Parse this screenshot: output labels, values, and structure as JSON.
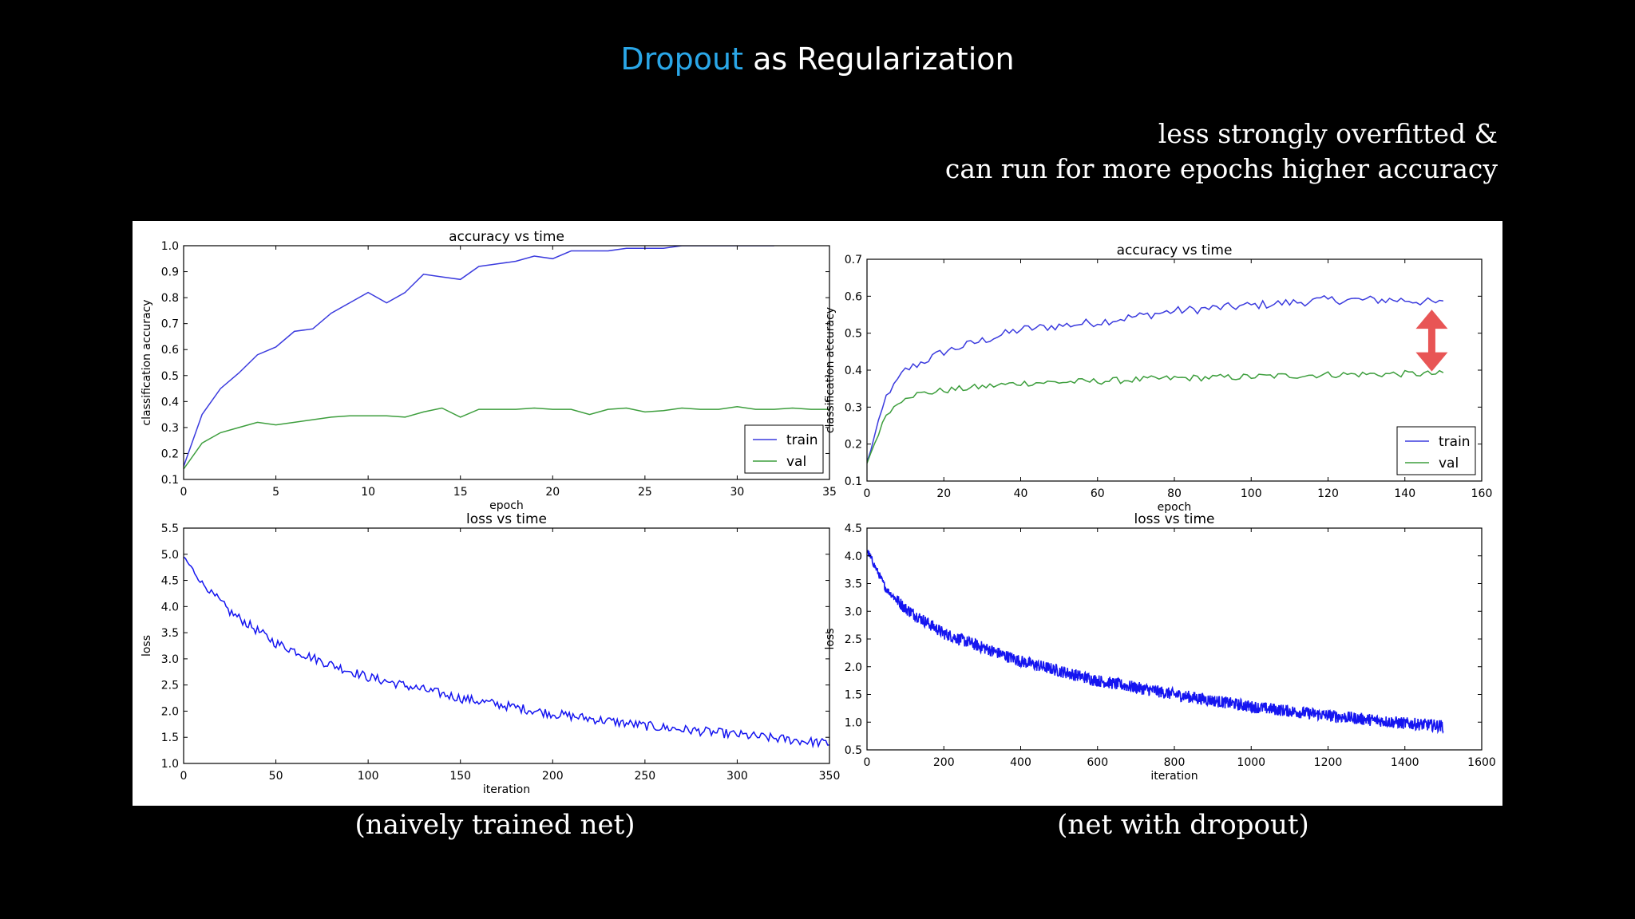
{
  "slide": {
    "title_highlight": "Dropout",
    "title_rest": " as Regularization",
    "note_line1": "less strongly overfitted &",
    "note_line2": "can run for more epochs higher accuracy",
    "caption_left": "(naively trained net)",
    "caption_right": "(net with dropout)"
  },
  "colors": {
    "title_highlight": "#2aa7e8",
    "train": "#3b3bde",
    "val": "#3d9e3d",
    "loss": "#1515f0",
    "arrow": "#e85555"
  },
  "chart_data": [
    {
      "id": "acc-left",
      "type": "line",
      "title": "accuracy vs time",
      "xlabel": "epoch",
      "ylabel": "classification accuracy",
      "xlim": [
        0,
        35
      ],
      "ylim": [
        0.1,
        1.0
      ],
      "xticks": [
        0,
        5,
        10,
        15,
        20,
        25,
        30,
        35
      ],
      "yticks": [
        0.1,
        0.2,
        0.3,
        0.4,
        0.5,
        0.6,
        0.7,
        0.8,
        0.9,
        1.0
      ],
      "legend": {
        "position": "lower-right",
        "entries": [
          "train",
          "val"
        ]
      },
      "series": [
        {
          "name": "train",
          "x": [
            0,
            1,
            2,
            3,
            4,
            5,
            6,
            7,
            8,
            9,
            10,
            11,
            12,
            13,
            14,
            15,
            16,
            17,
            18,
            19,
            20,
            21,
            22,
            23,
            24,
            25,
            26,
            27,
            28,
            29,
            30,
            31,
            32
          ],
          "y": [
            0.15,
            0.35,
            0.45,
            0.51,
            0.58,
            0.61,
            0.67,
            0.68,
            0.74,
            0.78,
            0.82,
            0.78,
            0.82,
            0.89,
            0.88,
            0.87,
            0.92,
            0.93,
            0.94,
            0.96,
            0.95,
            0.98,
            0.98,
            0.98,
            0.99,
            0.99,
            0.99,
            1.0,
            1.0,
            1.0,
            1.0,
            1.0,
            1.0
          ]
        },
        {
          "name": "val",
          "x": [
            0,
            1,
            2,
            3,
            4,
            5,
            6,
            7,
            8,
            9,
            10,
            11,
            12,
            13,
            14,
            15,
            16,
            17,
            18,
            19,
            20,
            21,
            22,
            23,
            24,
            25,
            26,
            27,
            28,
            29,
            30,
            31,
            32,
            33,
            34,
            35
          ],
          "y": [
            0.14,
            0.24,
            0.28,
            0.3,
            0.32,
            0.31,
            0.32,
            0.33,
            0.34,
            0.345,
            0.345,
            0.345,
            0.34,
            0.36,
            0.375,
            0.34,
            0.37,
            0.37,
            0.37,
            0.375,
            0.37,
            0.37,
            0.35,
            0.37,
            0.375,
            0.36,
            0.365,
            0.375,
            0.37,
            0.37,
            0.38,
            0.37,
            0.37,
            0.375,
            0.37,
            0.37
          ]
        }
      ]
    },
    {
      "id": "acc-right",
      "type": "line",
      "title": "accuracy vs time",
      "xlabel": "epoch",
      "ylabel": "classification accuracy",
      "xlim": [
        0,
        160
      ],
      "ylim": [
        0.1,
        0.7
      ],
      "xticks": [
        0,
        20,
        40,
        60,
        80,
        100,
        120,
        140,
        160
      ],
      "yticks": [
        0.1,
        0.2,
        0.3,
        0.4,
        0.5,
        0.6,
        0.7
      ],
      "legend": {
        "position": "lower-right",
        "entries": [
          "train",
          "val"
        ]
      },
      "annotation": "double-headed red arrow between train and val at epoch ~147",
      "series": [
        {
          "name": "train",
          "trend": [
            [
              0,
              0.15
            ],
            [
              5,
              0.33
            ],
            [
              10,
              0.4
            ],
            [
              20,
              0.45
            ],
            [
              40,
              0.51
            ],
            [
              60,
              0.53
            ],
            [
              80,
              0.56
            ],
            [
              100,
              0.575
            ],
            [
              120,
              0.59
            ],
            [
              140,
              0.59
            ],
            [
              150,
              0.58
            ]
          ],
          "noise": 0.012
        },
        {
          "name": "val",
          "trend": [
            [
              0,
              0.15
            ],
            [
              5,
              0.28
            ],
            [
              10,
              0.33
            ],
            [
              20,
              0.345
            ],
            [
              40,
              0.365
            ],
            [
              60,
              0.37
            ],
            [
              80,
              0.378
            ],
            [
              100,
              0.382
            ],
            [
              120,
              0.388
            ],
            [
              140,
              0.39
            ],
            [
              150,
              0.39
            ]
          ],
          "noise": 0.009
        }
      ]
    },
    {
      "id": "loss-left",
      "type": "line",
      "title": "loss vs time",
      "xlabel": "iteration",
      "ylabel": "loss",
      "xlim": [
        0,
        350
      ],
      "ylim": [
        1.0,
        5.5
      ],
      "xticks": [
        0,
        50,
        100,
        150,
        200,
        250,
        300,
        350
      ],
      "yticks": [
        1.0,
        1.5,
        2.0,
        2.5,
        3.0,
        3.5,
        4.0,
        4.5,
        5.0,
        5.5
      ],
      "series": [
        {
          "name": "loss",
          "trend": [
            [
              0,
              4.95
            ],
            [
              10,
              4.45
            ],
            [
              25,
              3.9
            ],
            [
              50,
              3.3
            ],
            [
              75,
              2.95
            ],
            [
              100,
              2.65
            ],
            [
              150,
              2.25
            ],
            [
              200,
              1.95
            ],
            [
              250,
              1.72
            ],
            [
              300,
              1.55
            ],
            [
              350,
              1.38
            ]
          ],
          "noise": 0.09
        }
      ]
    },
    {
      "id": "loss-right",
      "type": "line",
      "title": "loss vs time",
      "xlabel": "iteration",
      "ylabel": "loss",
      "xlim": [
        0,
        1600
      ],
      "ylim": [
        0.5,
        4.5
      ],
      "xticks": [
        0,
        200,
        400,
        600,
        800,
        1000,
        1200,
        1400,
        1600
      ],
      "yticks": [
        0.5,
        1.0,
        1.5,
        2.0,
        2.5,
        3.0,
        3.5,
        4.0,
        4.5
      ],
      "series": [
        {
          "name": "loss",
          "trend": [
            [
              0,
              4.1
            ],
            [
              50,
              3.4
            ],
            [
              100,
              3.05
            ],
            [
              200,
              2.6
            ],
            [
              400,
              2.1
            ],
            [
              600,
              1.75
            ],
            [
              800,
              1.5
            ],
            [
              1000,
              1.28
            ],
            [
              1200,
              1.12
            ],
            [
              1400,
              0.98
            ],
            [
              1500,
              0.93
            ]
          ],
          "noise": 0.11
        }
      ]
    }
  ]
}
